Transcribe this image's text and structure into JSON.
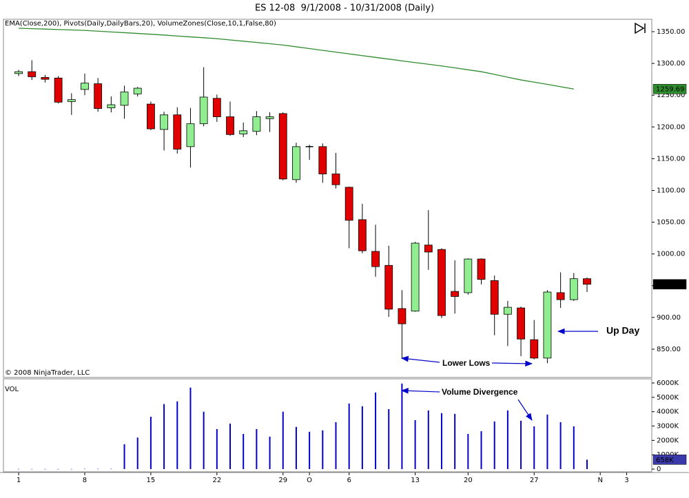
{
  "chart_data": [
    {
      "type": "candlestick",
      "title": "ES 12-08  9/1/2008 - 10/31/2008 (Daily)",
      "subtitle": "EMA(Close,200), Pivots(Daily,DailyBars,20), VolumeZones(Close,10,1,False,80)",
      "copyright": "© 2008 NinjaTrader, LLC",
      "annotations": [
        "Lower Lows",
        "Up Day"
      ],
      "x": [
        0,
        1,
        2,
        3,
        4,
        5,
        6,
        7,
        8,
        9,
        10,
        11,
        12,
        13,
        14,
        15,
        16,
        17,
        18,
        19,
        20,
        21,
        22,
        23,
        24,
        25,
        26,
        27,
        28,
        29,
        30,
        31,
        32,
        33,
        34,
        35,
        36,
        37,
        38,
        39,
        40,
        41,
        42,
        43
      ],
      "open": [
        1284,
        1287,
        1278,
        1277,
        1240,
        1259,
        1268,
        1230,
        1234,
        1252,
        1236,
        1196,
        1219,
        1169,
        1205,
        1245,
        1216,
        1189,
        1193,
        1213,
        1221,
        1117,
        1169,
        1169,
        1126,
        1105,
        1054,
        1004,
        982,
        914,
        910,
        1014,
        1007,
        941,
        939,
        992,
        958,
        905,
        915,
        865,
        836,
        939,
        928,
        961
      ],
      "high": [
        1290,
        1305,
        1282,
        1280,
        1253,
        1284,
        1277,
        1248,
        1265,
        1263,
        1240,
        1224,
        1231,
        1230,
        1294,
        1251,
        1240,
        1207,
        1225,
        1223,
        1223,
        1175,
        1172,
        1174,
        1159,
        1106,
        1079,
        1046,
        1013,
        943,
        1019,
        1069,
        1009,
        990,
        993,
        993,
        966,
        926,
        917,
        896,
        943,
        971,
        970,
        963
      ],
      "low": [
        1280,
        1274,
        1270,
        1237,
        1219,
        1250,
        1224,
        1223,
        1213,
        1248,
        1195,
        1163,
        1158,
        1136,
        1201,
        1208,
        1186,
        1184,
        1187,
        1192,
        1116,
        1112,
        1148,
        1112,
        1103,
        1009,
        1001,
        964,
        901,
        835,
        909,
        975,
        899,
        906,
        936,
        952,
        872,
        855,
        839,
        834,
        828,
        915,
        926,
        940
      ],
      "close": [
        1287,
        1279,
        1275,
        1239,
        1243,
        1269,
        1229,
        1235,
        1255,
        1261,
        1197,
        1219,
        1165,
        1205,
        1247,
        1216,
        1188,
        1194,
        1216,
        1216,
        1118,
        1169,
        1169,
        1126,
        1109,
        1053,
        1005,
        980,
        913,
        890,
        1017,
        1003,
        903,
        933,
        992,
        960,
        905,
        916,
        866,
        836,
        940,
        928,
        961,
        952.25
      ],
      "up_color": "#90ee90",
      "down_color": "#e00000",
      "overlay": {
        "color": "#2e8b2e",
        "values": [
          1355.4,
          1354.7,
          1354.1,
          1353.4,
          1352.7,
          1352.0,
          1350.8,
          1349.6,
          1348.4,
          1347.2,
          1346.0,
          1344.6,
          1343.2,
          1341.8,
          1340.4,
          1339.0,
          1337.0,
          1335.0,
          1333.0,
          1331.0,
          1329.0,
          1326.2,
          1323.4,
          1320.6,
          1317.8,
          1315.0,
          1312.3,
          1309.5,
          1306.8,
          1304.0,
          1301.3,
          1298.7,
          1296.0,
          1293.0,
          1290.0,
          1287.0,
          1282.7,
          1278.3,
          1274.0,
          1270.5,
          1267.0,
          1263.3,
          1259.69,
          null
        ]
      },
      "xlim": [
        -1.15,
        47.9
      ],
      "ylim": [
        805.5,
        1369.5
      ],
      "yticks": [
        {
          "value": 850,
          "label": "850.00"
        },
        {
          "value": 900,
          "label": "900.00"
        },
        {
          "value": 950,
          "label": "950.00"
        },
        {
          "value": 1000,
          "label": "1000.00"
        },
        {
          "value": 1050,
          "label": "1050.00"
        },
        {
          "value": 1100,
          "label": "1100.00"
        },
        {
          "value": 1150,
          "label": "1150.00"
        },
        {
          "value": 1200,
          "label": "1200.00"
        },
        {
          "value": 1250,
          "label": "1250.00"
        },
        {
          "value": 1300,
          "label": "1300.00"
        },
        {
          "value": 1350,
          "label": "1350.00"
        }
      ]
    },
    {
      "type": "bar",
      "ylabel": "VOL",
      "annotations": [
        "Volume Divergence"
      ],
      "x": [
        0,
        1,
        2,
        3,
        4,
        5,
        6,
        7,
        8,
        9,
        10,
        11,
        12,
        13,
        14,
        15,
        16,
        17,
        18,
        19,
        20,
        21,
        22,
        23,
        24,
        25,
        26,
        27,
        28,
        29,
        30,
        31,
        32,
        33,
        34,
        35,
        36,
        37,
        38,
        39,
        40,
        41,
        42,
        43
      ],
      "values": [
        10,
        10,
        10,
        10,
        10,
        20,
        20,
        20,
        1730,
        2200,
        3650,
        4530,
        4720,
        5680,
        4000,
        2790,
        3170,
        2450,
        2790,
        2260,
        4000,
        2940,
        2600,
        2700,
        3270,
        4570,
        4380,
        5340,
        4180,
        5960,
        3410,
        4090,
        3900,
        3850,
        2450,
        2640,
        3320,
        4090,
        3370,
        2980,
        3800,
        3270,
        2980,
        658
      ],
      "value_labels": [
        null,
        null,
        null,
        null,
        null,
        null,
        null,
        null,
        null,
        null,
        null,
        null,
        null,
        null,
        null,
        null,
        null,
        null,
        null,
        null,
        null,
        null,
        null,
        null,
        null,
        null,
        null,
        null,
        null,
        null,
        null,
        null,
        null,
        null,
        null,
        null,
        null,
        null,
        null,
        null,
        null,
        null,
        null,
        "658K"
      ],
      "color": "#0000cc",
      "xlim": [
        -1.15,
        47.9
      ],
      "ylim": [
        -190,
        6290
      ],
      "yticks": [
        0,
        {
          "value": 1000,
          "label": "1000K"
        },
        {
          "value": 2000,
          "label": "2000K"
        },
        {
          "value": 3000,
          "label": "3000K"
        },
        {
          "value": 4000,
          "label": "4000K"
        },
        {
          "value": 5000,
          "label": "5000K"
        },
        {
          "value": 6000,
          "label": "6000K"
        }
      ],
      "xticks": [
        {
          "value": 0,
          "label": "1"
        },
        {
          "value": 5,
          "label": "8"
        },
        {
          "value": 10,
          "label": "15"
        },
        {
          "value": 15,
          "label": "22"
        },
        {
          "value": 20,
          "label": "29"
        },
        {
          "value": 22,
          "label": "O"
        },
        {
          "value": 25,
          "label": "6"
        },
        {
          "value": 30,
          "label": "13"
        },
        {
          "value": 34,
          "label": "20"
        },
        {
          "value": 39,
          "label": "27"
        },
        {
          "value": 44,
          "label": "N"
        },
        {
          "value": 46,
          "label": "3"
        }
      ]
    }
  ]
}
